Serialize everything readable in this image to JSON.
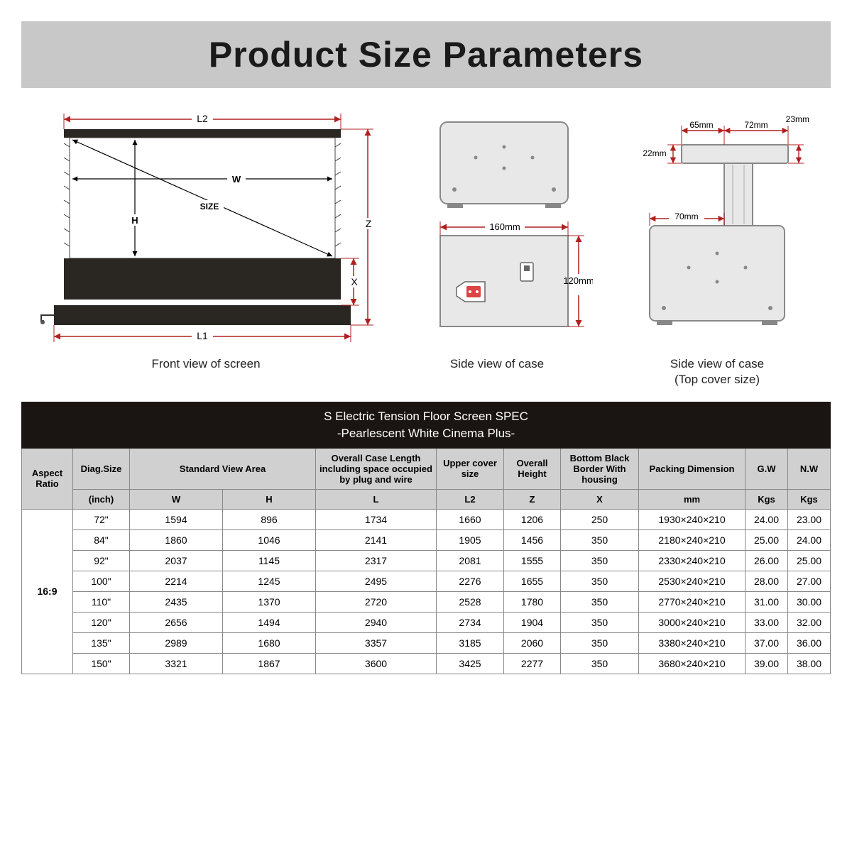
{
  "title": "Product Size Parameters",
  "colors": {
    "title_bg": "#c8c8c8",
    "title_text": "#1a1a1a",
    "dim_line": "#b02020",
    "diagram_stroke": "#222",
    "dark_fill": "#2a2622",
    "table_header_bg": "#1a1512",
    "table_header_text": "#ffffff",
    "subheader_bg": "#d0d0d0",
    "cell_border": "#888888"
  },
  "diagrams": {
    "front": {
      "caption": "Front view of screen",
      "labels": {
        "L1": "L1",
        "L2": "L2",
        "W": "W",
        "H": "H",
        "SIZE": "SIZE",
        "Z": "Z",
        "X": "X"
      }
    },
    "side1": {
      "caption": "Side view of case",
      "labels": {
        "w": "160mm",
        "h": "120mm"
      }
    },
    "side2": {
      "caption": "Side view of case",
      "caption2": "(Top cover size)",
      "labels": {
        "a": "65mm",
        "b": "72mm",
        "c": "23mm",
        "d": "22mm",
        "e": "70mm"
      }
    }
  },
  "spec": {
    "title_line1": "S Electric Tension Floor Screen SPEC",
    "title_line2": "-Pearlescent White Cinema Plus-",
    "headers": {
      "aspect": "Aspect Ratio",
      "diag": "Diag.Size",
      "view": "Standard View Area",
      "case_len": "Overall Case Length including space occupied by plug and wire",
      "upper": "Upper cover size",
      "overall_h": "Overall Height",
      "bottom": "Bottom Black Border With housing",
      "packing": "Packing Dimension",
      "gw": "G.W",
      "nw": "N.W"
    },
    "subheaders": {
      "inch": "(inch)",
      "W": "W",
      "H": "H",
      "L": "L",
      "L2": "L2",
      "Z": "Z",
      "X": "X",
      "mm": "mm",
      "kgs1": "Kgs",
      "kgs2": "Kgs"
    },
    "aspect_ratio": "16:9",
    "rows": [
      {
        "inch": "72\"",
        "W": "1594",
        "H": "896",
        "L": "1734",
        "L2": "1660",
        "Z": "1206",
        "X": "250",
        "pack": "1930×240×210",
        "gw": "24.00",
        "nw": "23.00"
      },
      {
        "inch": "84\"",
        "W": "1860",
        "H": "1046",
        "L": "2141",
        "L2": "1905",
        "Z": "1456",
        "X": "350",
        "pack": "2180×240×210",
        "gw": "25.00",
        "nw": "24.00"
      },
      {
        "inch": "92\"",
        "W": "2037",
        "H": "1145",
        "L": "2317",
        "L2": "2081",
        "Z": "1555",
        "X": "350",
        "pack": "2330×240×210",
        "gw": "26.00",
        "nw": "25.00"
      },
      {
        "inch": "100\"",
        "W": "2214",
        "H": "1245",
        "L": "2495",
        "L2": "2276",
        "Z": "1655",
        "X": "350",
        "pack": "2530×240×210",
        "gw": "28.00",
        "nw": "27.00"
      },
      {
        "inch": "110\"",
        "W": "2435",
        "H": "1370",
        "L": "2720",
        "L2": "2528",
        "Z": "1780",
        "X": "350",
        "pack": "2770×240×210",
        "gw": "31.00",
        "nw": "30.00"
      },
      {
        "inch": "120\"",
        "W": "2656",
        "H": "1494",
        "L": "2940",
        "L2": "2734",
        "Z": "1904",
        "X": "350",
        "pack": "3000×240×210",
        "gw": "33.00",
        "nw": "32.00"
      },
      {
        "inch": "135\"",
        "W": "2989",
        "H": "1680",
        "L": "3357",
        "L2": "3185",
        "Z": "2060",
        "X": "350",
        "pack": "3380×240×210",
        "gw": "37.00",
        "nw": "36.00"
      },
      {
        "inch": "150\"",
        "W": "3321",
        "H": "1867",
        "L": "3600",
        "L2": "3425",
        "Z": "2277",
        "X": "350",
        "pack": "3680×240×210",
        "gw": "39.00",
        "nw": "38.00"
      }
    ]
  }
}
